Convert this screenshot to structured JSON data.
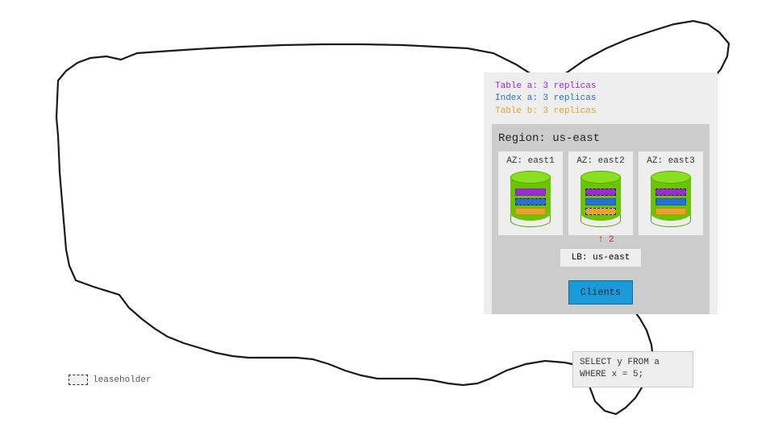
{
  "colors": {
    "table_a": "#9a2bd6",
    "index_a": "#2a6fd6",
    "table_b": "#e8a32a",
    "leaseholder_border": "#222222",
    "cylinder_fill": "#6ac400",
    "cylinder_top": "#8ae020",
    "arrow": "#d02020",
    "panel_bg": "#eeeeee",
    "region_bg": "#cccccc",
    "clients_bg": "#1a9ad8",
    "map_stroke": "#1a1a1a"
  },
  "legend": {
    "leaseholder_label": "leaseholder",
    "lines": [
      {
        "text": "Table a: 3 replicas",
        "color": "#9a2bd6"
      },
      {
        "text": "Index a: 3 replicas",
        "color": "#2a6fd6"
      },
      {
        "text": "Table b: 3 replicas",
        "color": "#e8a32a"
      }
    ]
  },
  "region": {
    "title": "Region: us-east",
    "availability_zones": [
      {
        "title": "AZ: east1",
        "stripes": [
          {
            "fill": "#9a2bd6",
            "lease": false
          },
          {
            "fill": "#2a6fd6",
            "lease": true
          },
          {
            "fill": "#e8a32a",
            "lease": false
          }
        ]
      },
      {
        "title": "AZ: east2",
        "stripes": [
          {
            "fill": "#9a2bd6",
            "lease": true
          },
          {
            "fill": "#2a6fd6",
            "lease": false
          },
          {
            "fill": "#e8a32a",
            "lease": true
          }
        ]
      },
      {
        "title": "AZ: east3",
        "stripes": [
          {
            "fill": "#9a2bd6",
            "lease": true
          },
          {
            "fill": "#2a6fd6",
            "lease": false
          },
          {
            "fill": "#e8a32a",
            "lease": false
          }
        ]
      }
    ],
    "route_arrow": {
      "to_az_index": 1,
      "label": "2",
      "symbol": "↑"
    },
    "load_balancer": "LB: us-east",
    "clients_label": "Clients"
  },
  "sql": {
    "line1": "SELECT y FROM a",
    "line2": "WHERE x = 5;"
  }
}
